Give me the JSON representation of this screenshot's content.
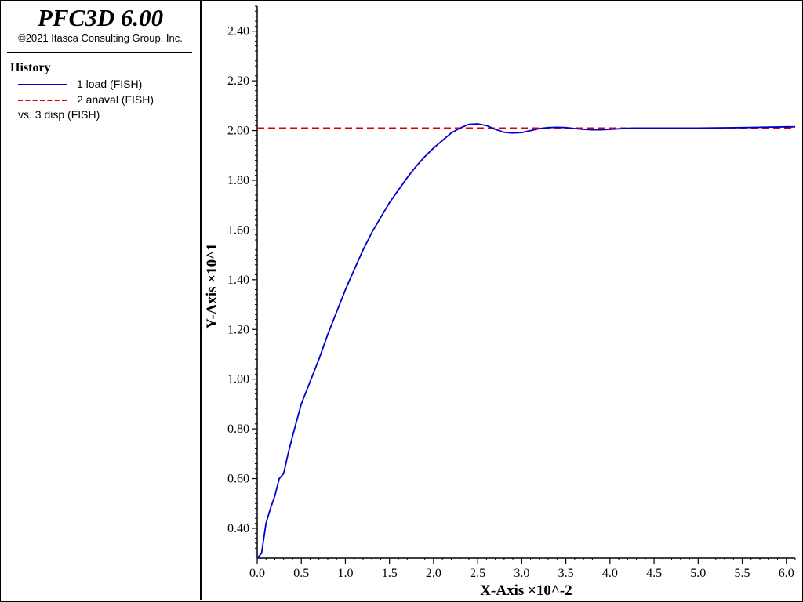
{
  "app": {
    "title": "PFC3D 6.00",
    "copyright": "©2021 Itasca Consulting Group, Inc."
  },
  "legend": {
    "heading": "History",
    "items": [
      {
        "label": "1 load (FISH)",
        "color": "#0000cc",
        "style": "solid"
      },
      {
        "label": "2 anaval (FISH)",
        "color": "#dd0000",
        "style": "dashed"
      }
    ],
    "versus": "vs. 3 disp (FISH)"
  },
  "chart_data": {
    "type": "line",
    "xlabel": "X-Axis ×10^-2",
    "ylabel": "Y-Axis ×10^1",
    "xlim": [
      0.0,
      6.1
    ],
    "ylim": [
      0.28,
      2.5
    ],
    "x_ticks": [
      "0.0",
      "0.5",
      "1.0",
      "1.5",
      "2.0",
      "2.5",
      "3.0",
      "3.5",
      "4.0",
      "4.5",
      "5.0",
      "5.5",
      "6.0"
    ],
    "y_ticks": [
      "0.40",
      "0.60",
      "0.80",
      "1.00",
      "1.20",
      "1.40",
      "1.60",
      "1.80",
      "2.00",
      "2.20",
      "2.40"
    ],
    "grid": false,
    "series": [
      {
        "name": "1 load (FISH)",
        "color": "#0000cc",
        "style": "solid",
        "x": [
          0.0,
          0.05,
          0.1,
          0.15,
          0.2,
          0.25,
          0.3,
          0.35,
          0.4,
          0.5,
          0.6,
          0.7,
          0.8,
          0.9,
          1.0,
          1.1,
          1.2,
          1.3,
          1.4,
          1.5,
          1.6,
          1.7,
          1.8,
          1.9,
          2.0,
          2.1,
          2.2,
          2.3,
          2.4,
          2.5,
          2.6,
          2.7,
          2.8,
          2.9,
          3.0,
          3.1,
          3.2,
          3.3,
          3.4,
          3.5,
          3.6,
          3.7,
          3.8,
          3.9,
          4.0,
          4.1,
          4.2,
          4.3,
          4.5,
          5.0,
          5.5,
          6.0,
          6.1
        ],
        "y": [
          0.28,
          0.3,
          0.42,
          0.48,
          0.53,
          0.6,
          0.62,
          0.7,
          0.77,
          0.9,
          0.99,
          1.08,
          1.18,
          1.27,
          1.36,
          1.44,
          1.52,
          1.59,
          1.65,
          1.71,
          1.76,
          1.81,
          1.855,
          1.895,
          1.93,
          1.96,
          1.99,
          2.01,
          2.025,
          2.027,
          2.02,
          2.005,
          1.993,
          1.99,
          1.992,
          2.0,
          2.008,
          2.012,
          2.013,
          2.012,
          2.008,
          2.005,
          2.003,
          2.003,
          2.005,
          2.007,
          2.009,
          2.01,
          2.01,
          2.01,
          2.012,
          2.015,
          2.015
        ]
      },
      {
        "name": "2 anaval (FISH)",
        "color": "#dd0000",
        "style": "dashed",
        "x": [
          0.0,
          6.1
        ],
        "y": [
          2.01,
          2.01
        ]
      }
    ]
  }
}
